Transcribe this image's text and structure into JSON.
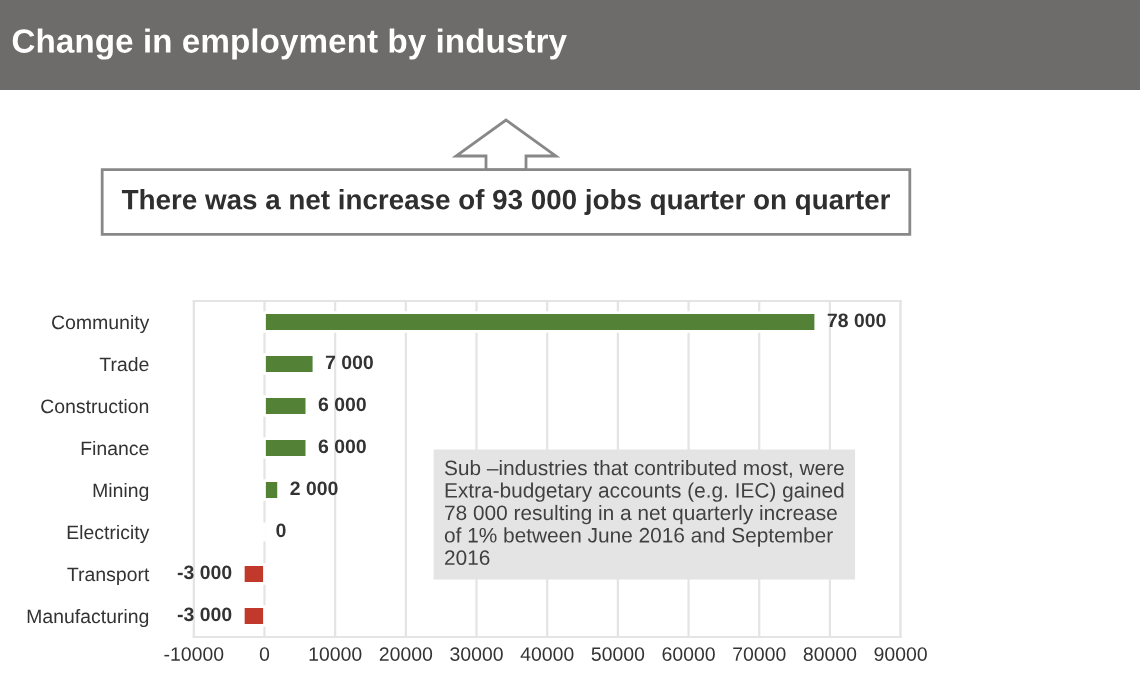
{
  "chart_data": {
    "type": "bar",
    "orientation": "horizontal",
    "title": "Change in employment by industry",
    "categories": [
      "Community",
      "Trade",
      "Construction",
      "Finance",
      "Mining",
      "Electricity",
      "Transport",
      "Manufacturing"
    ],
    "values": [
      78000,
      7000,
      6000,
      6000,
      2000,
      0,
      -3000,
      -3000
    ],
    "colors": [
      "#538135",
      "#538135",
      "#538135",
      "#538135",
      "#538135",
      null,
      "#c0392b",
      "#c0392b"
    ],
    "value_labels": [
      "78 000",
      "7 000",
      "6 000",
      "6 000",
      "2 000",
      "0",
      "-3 000",
      "-3 000"
    ],
    "xlim": [
      -10000,
      90000
    ],
    "xticks": [
      -10000,
      0,
      10000,
      20000,
      30000,
      40000,
      50000,
      60000,
      70000,
      80000,
      90000
    ],
    "grid": "x",
    "legend": false,
    "annotations": [
      "There was a net increase of 93 000 jobs quarter on quarter",
      "Sub –industries that contributed most, were Extra-budgetary accounts (e.g. IEC) gained 78 000 resulting in a net quarterly increase of 1% between June 2016 and September 2016"
    ]
  }
}
